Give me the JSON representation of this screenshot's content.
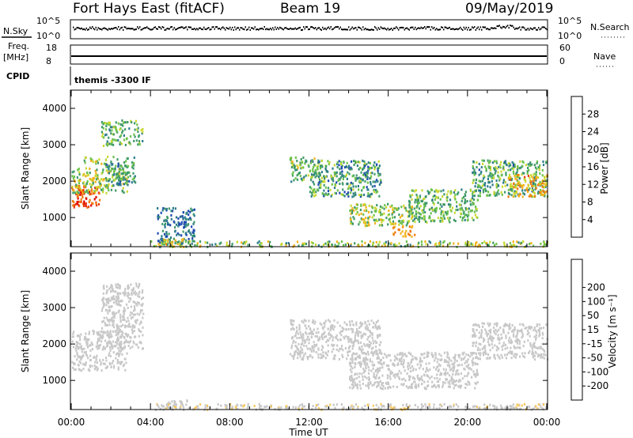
{
  "header": {
    "station": "Fort Hays East (fitACF)",
    "beam": "Beam 19",
    "date": "09/May/2019"
  },
  "strips": {
    "nsky": {
      "label": "N.Sky",
      "ticks": [
        "10^5",
        "10^0"
      ]
    },
    "nsearch": {
      "label": "N.Search",
      "ticks": [
        "10^5",
        "10^0"
      ]
    },
    "freq": {
      "label_line1": "Freq.",
      "label_line2": "[MHz]",
      "ticks": [
        "18",
        "8"
      ]
    },
    "nave": {
      "label": "Nave",
      "ticks": [
        "60",
        "0"
      ]
    },
    "cpid": {
      "label": "CPID",
      "value": "themis -3300 IF"
    }
  },
  "colors": {
    "power_scale": [
      "#0022ee",
      "#1f4ab0",
      "#2e7d8c",
      "#3f9a6a",
      "#6cc24a",
      "#c9d830",
      "#f2b21b",
      "#f07a10",
      "#e83e0e",
      "#e00000"
    ],
    "velocity_scale": [
      "#e00000",
      "#f06010",
      "#f2a020",
      "#f8c860",
      "#c8c8c8",
      "#c8c8c8",
      "#70d040",
      "#3a9a5a",
      "#2a6a8a",
      "#1a2ab0"
    ]
  },
  "chart_data": [
    {
      "type": "heatmap",
      "name": "power",
      "ylabel": "Slant Range [km]",
      "y_ticks": [
        "1000",
        "2000",
        "3000",
        "4000"
      ],
      "ylim": [
        200,
        4500
      ],
      "xlim": [
        0,
        24
      ],
      "colorbar_label": "Power [dB]",
      "colorbar_ticks": [
        "4",
        "8",
        "12",
        "16",
        "20",
        "24",
        "28"
      ],
      "colorbar_range": [
        0,
        32
      ],
      "blobs": [
        {
          "t0": 0.0,
          "t1": 1.4,
          "r0": 1300,
          "r1": 1900,
          "v0": 22,
          "v1": 31
        },
        {
          "t0": 0.0,
          "t1": 2.8,
          "r0": 1700,
          "r1": 2400,
          "v0": 10,
          "v1": 22
        },
        {
          "t0": 0.6,
          "t1": 1.8,
          "r0": 2500,
          "r1": 2700,
          "v0": 12,
          "v1": 22
        },
        {
          "t0": 1.7,
          "t1": 3.2,
          "r0": 1900,
          "r1": 2700,
          "v0": 6,
          "v1": 16
        },
        {
          "t0": 1.5,
          "t1": 3.6,
          "r0": 3000,
          "r1": 3700,
          "v0": 8,
          "v1": 18
        },
        {
          "t0": 4.3,
          "t1": 6.2,
          "r0": 300,
          "r1": 1300,
          "v0": 4,
          "v1": 12
        },
        {
          "t0": 4.6,
          "t1": 5.9,
          "r0": 250,
          "r1": 450,
          "v0": 14,
          "v1": 24
        },
        {
          "t0": 11.0,
          "t1": 12.7,
          "r0": 2000,
          "r1": 2700,
          "v0": 8,
          "v1": 20
        },
        {
          "t0": 12.0,
          "t1": 15.6,
          "r0": 1600,
          "r1": 2600,
          "v0": 4,
          "v1": 18
        },
        {
          "t0": 14.0,
          "t1": 17.2,
          "r0": 800,
          "r1": 1400,
          "v0": 10,
          "v1": 22
        },
        {
          "t0": 16.2,
          "t1": 17.3,
          "r0": 500,
          "r1": 800,
          "v0": 20,
          "v1": 26
        },
        {
          "t0": 17.0,
          "t1": 20.5,
          "r0": 900,
          "r1": 1800,
          "v0": 8,
          "v1": 18
        },
        {
          "t0": 20.2,
          "t1": 24.0,
          "r0": 1600,
          "r1": 2600,
          "v0": 6,
          "v1": 18
        },
        {
          "t0": 22.0,
          "t1": 24.0,
          "r0": 1600,
          "r1": 2200,
          "v0": 16,
          "v1": 26
        },
        {
          "t0": 4.0,
          "t1": 24.0,
          "r0": 220,
          "r1": 380,
          "v0": 8,
          "v1": 22
        }
      ]
    },
    {
      "type": "heatmap",
      "name": "velocity",
      "ylabel": "Slant Range [km]",
      "y_ticks": [
        "1000",
        "2000",
        "3000",
        "4000"
      ],
      "ylim": [
        200,
        4500
      ],
      "xlim": [
        0,
        24
      ],
      "colorbar_label": "Velocity [m s⁻¹]",
      "colorbar_ticks": [
        "-200",
        "-100",
        "-50",
        "-15",
        "15",
        "50",
        "100",
        "200"
      ],
      "colorbar_range": [
        -250,
        250
      ],
      "blobs": [
        {
          "t0": 0.0,
          "t1": 2.8,
          "r0": 1300,
          "r1": 2400,
          "v0": -10,
          "v1": 10
        },
        {
          "t0": 1.5,
          "t1": 3.6,
          "r0": 1900,
          "r1": 3700,
          "v0": -12,
          "v1": 12
        },
        {
          "t0": 1.4,
          "t1": 2.4,
          "r0": 3100,
          "r1": 3300,
          "v0": -40,
          "v1": -20
        },
        {
          "t0": 4.6,
          "t1": 5.9,
          "r0": 250,
          "r1": 500,
          "v0": 20,
          "v1": 40
        },
        {
          "t0": 11.0,
          "t1": 15.6,
          "r0": 1600,
          "r1": 2700,
          "v0": -12,
          "v1": 12
        },
        {
          "t0": 14.0,
          "t1": 20.5,
          "r0": 800,
          "r1": 1800,
          "v0": -12,
          "v1": 12
        },
        {
          "t0": 20.2,
          "t1": 24.0,
          "r0": 1600,
          "r1": 2600,
          "v0": -12,
          "v1": 12
        },
        {
          "t0": 4.0,
          "t1": 24.0,
          "r0": 220,
          "r1": 380,
          "v0": -60,
          "v1": -20
        }
      ]
    }
  ],
  "x_axis": {
    "label": "Time UT",
    "ticks": [
      "00:00",
      "04:00",
      "08:00",
      "12:00",
      "16:00",
      "20:00",
      "00:00"
    ]
  }
}
